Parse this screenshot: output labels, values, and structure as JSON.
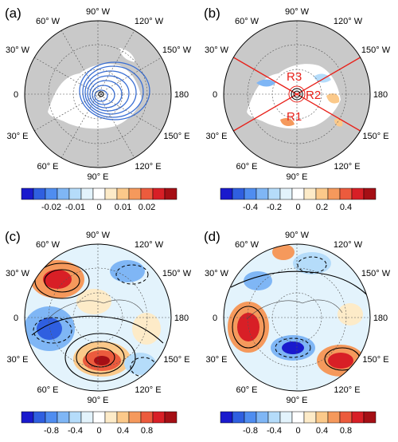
{
  "panels": [
    {
      "id": "a",
      "label": "(a)",
      "lon_labels": [
        "90° W",
        "120° W",
        "150° W",
        "180",
        "150° E",
        "120° E",
        "90° E",
        "60° E",
        "30° E",
        "0",
        "30° W",
        "60° W"
      ]
    },
    {
      "id": "b",
      "label": "(b)",
      "lon_labels": [
        "90° W",
        "120° W",
        "150° W",
        "180",
        "150° E",
        "120° E",
        "90° E",
        "60° E",
        "30° E",
        "0",
        "30° W",
        "60° W"
      ],
      "regions": [
        "R1",
        "R2",
        "R3"
      ]
    },
    {
      "id": "c",
      "label": "(c)",
      "lon_labels": [
        "90° W",
        "120° W",
        "150° W",
        "180",
        "150° E",
        "120° E",
        "90° E",
        "60° E",
        "30° E",
        "0",
        "30° W",
        "60° W"
      ]
    },
    {
      "id": "d",
      "label": "(d)",
      "lon_labels": [
        "90° W",
        "120° W",
        "150° W",
        "180",
        "150° E",
        "120° E",
        "90° E",
        "60° E",
        "30° E",
        "0",
        "30° W",
        "60° W"
      ]
    }
  ],
  "colorbars": [
    {
      "panel": "a",
      "ticks": [
        "-0.02",
        "-0.01",
        "0",
        "0.01",
        "0.02"
      ]
    },
    {
      "panel": "b",
      "ticks": [
        "-0.4",
        "-0.2",
        "0",
        "0.2",
        "0.4"
      ]
    },
    {
      "panel": "c",
      "ticks": [
        "-0.8",
        "-0.4",
        "0",
        "0.4",
        "0.8"
      ]
    },
    {
      "panel": "d",
      "ticks": [
        "-0.8",
        "-0.4",
        "0",
        "0.4",
        "0.8"
      ]
    }
  ],
  "palette": [
    "#1a1acd",
    "#2f5fe0",
    "#4f8df0",
    "#7fb6f5",
    "#b5dcfa",
    "#e3f3fc",
    "#ffffff",
    "#fdebc8",
    "#fbc98a",
    "#f5995c",
    "#ec5b3d",
    "#d81f26",
    "#a50f15"
  ],
  "colors": {
    "land": "#c9c9c9",
    "region_line": "#e8211a",
    "contour": "#000000"
  }
}
